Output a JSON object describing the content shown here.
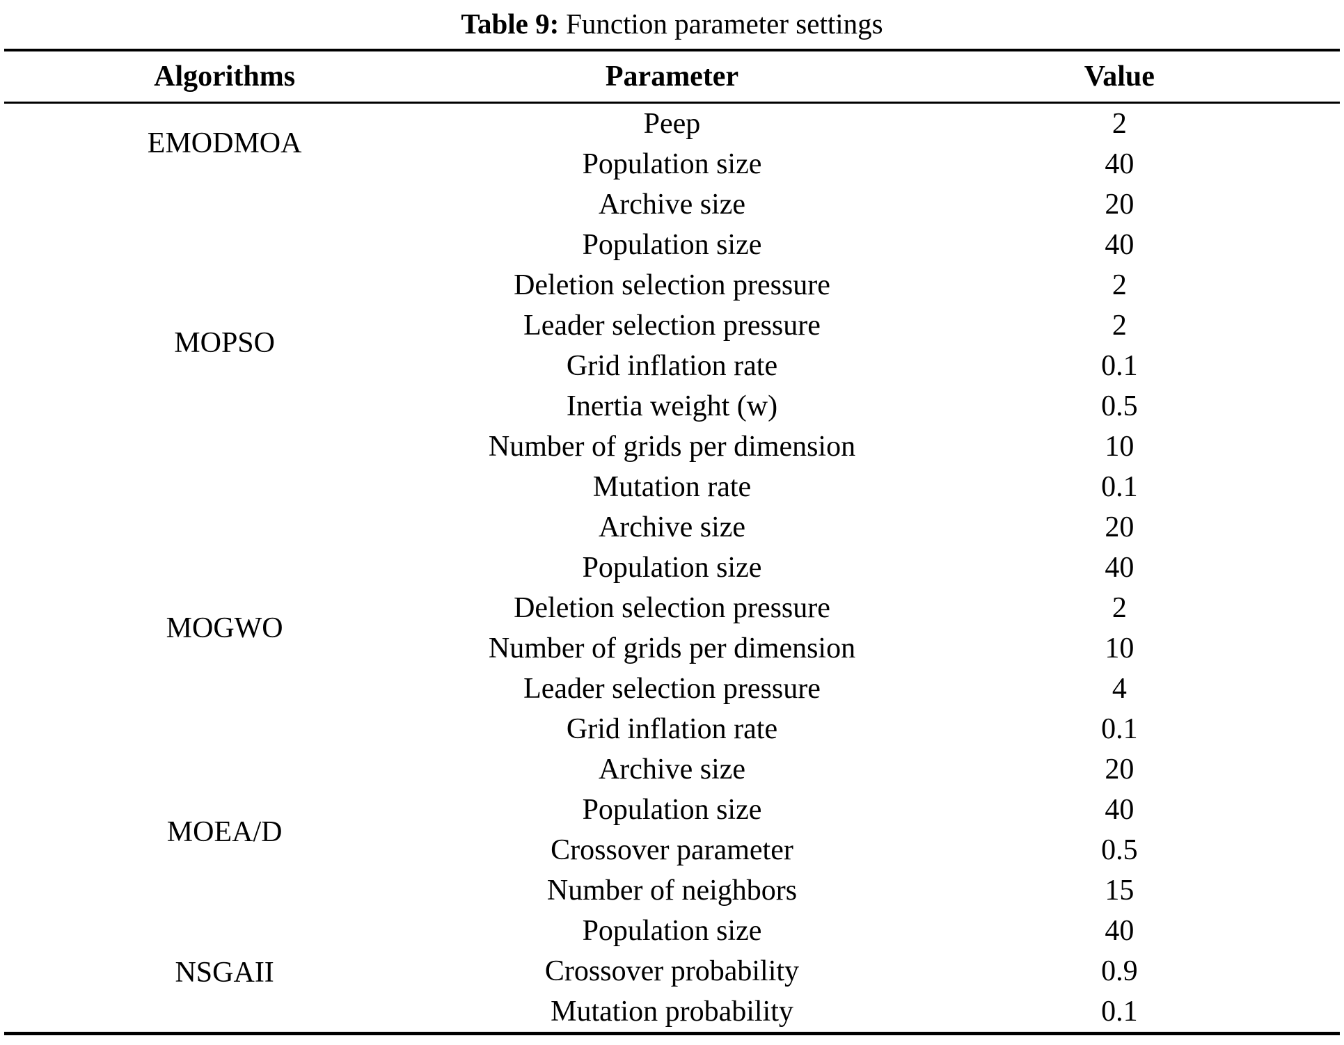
{
  "caption": {
    "label": "Table 9:",
    "text": "Function parameter settings"
  },
  "table": {
    "headers": [
      "Algorithms",
      "Parameter",
      "Value"
    ],
    "groups": [
      {
        "algorithm": "EMODMOA",
        "rows": [
          {
            "parameter": "Peep",
            "value": "2"
          },
          {
            "parameter": "Population size",
            "value": "40"
          },
          {
            "parameter": "Archive size",
            "value": "20"
          }
        ]
      },
      {
        "algorithm": "MOPSO",
        "rows": [
          {
            "parameter": "Population size",
            "value": "40"
          },
          {
            "parameter": "Deletion selection pressure",
            "value": "2"
          },
          {
            "parameter": "Leader selection pressure",
            "value": "2"
          },
          {
            "parameter": "Grid inflation rate",
            "value": "0.1"
          },
          {
            "parameter": "Inertia weight (w)",
            "value": "0.5"
          },
          {
            "parameter": "Number of grids per dimension",
            "value": "10"
          },
          {
            "parameter": "Mutation rate",
            "value": "0.1"
          },
          {
            "parameter": "Archive size",
            "value": "20"
          }
        ]
      },
      {
        "algorithm": "MOGWO",
        "rows": [
          {
            "parameter": "Population size",
            "value": "40"
          },
          {
            "parameter": "Deletion selection pressure",
            "value": "2"
          },
          {
            "parameter": "Number of grids per dimension",
            "value": "10"
          },
          {
            "parameter": "Leader selection pressure",
            "value": "4"
          },
          {
            "parameter": "Grid inflation rate",
            "value": "0.1"
          },
          {
            "parameter": "Archive size",
            "value": "20"
          }
        ]
      },
      {
        "algorithm": "MOEA/D",
        "rows": [
          {
            "parameter": "Population size",
            "value": "40"
          },
          {
            "parameter": "Crossover parameter",
            "value": "0.5"
          },
          {
            "parameter": "Number of neighbors",
            "value": "15"
          }
        ]
      },
      {
        "algorithm": "NSGAII",
        "rows": [
          {
            "parameter": "Population size",
            "value": "40"
          },
          {
            "parameter": "Crossover probability",
            "value": "0.9"
          },
          {
            "parameter": "Mutation probability",
            "value": "0.1"
          }
        ]
      }
    ]
  }
}
